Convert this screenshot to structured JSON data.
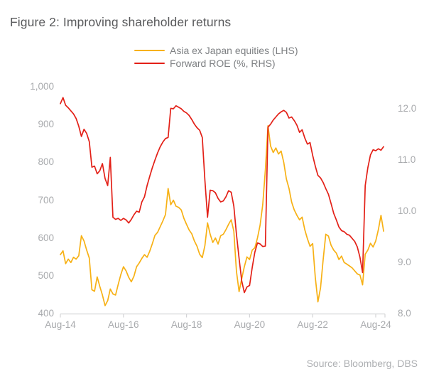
{
  "title": "Figure 2: Improving shareholder returns",
  "source": "Source: Bloomberg, DBS",
  "colors": {
    "title_text": "#58595B",
    "legend_text": "#7E8083",
    "axis_label_text": "#A8AAAD",
    "source_text": "#AEB0B3",
    "axis_line": "#D4D5D7",
    "series_yellow": "#F7B115",
    "series_red": "#E32017"
  },
  "chart_data": {
    "type": "line",
    "title": "Figure 2: Improving shareholder returns",
    "x_start": "Aug-2014",
    "x_end": "Nov-2024",
    "frequency": "monthly",
    "x_tick_labels": [
      "Aug-14",
      "Aug-16",
      "Aug-18",
      "Aug-20",
      "Aug-22",
      "Aug-24"
    ],
    "x_tick_month_index": [
      0,
      24,
      48,
      72,
      96,
      120
    ],
    "grid": "off",
    "legend_position": "top-center",
    "lhs_axis": {
      "side": "left",
      "tick_labels": [
        "1,000",
        "900",
        "800",
        "700",
        "600",
        "500",
        "400"
      ],
      "range": [
        400,
        1000
      ]
    },
    "rhs_axis": {
      "side": "right",
      "tick_labels": [
        "12.0",
        "11.0",
        "10.0",
        "9.0",
        "8.0"
      ],
      "tick_range": [
        8.0,
        12.0
      ]
    },
    "series": [
      {
        "name": "Asia ex Japan equities (LHS)",
        "axis": "lhs",
        "color": "#F7B115",
        "values": [
          556,
          566,
          532,
          544,
          535,
          549,
          544,
          553,
          606,
          592,
          568,
          547,
          463,
          459,
          497,
          472,
          449,
          421,
          434,
          465,
          452,
          449,
          477,
          503,
          524,
          513,
          496,
          484,
          499,
          524,
          534,
          546,
          556,
          549,
          565,
          585,
          607,
          615,
          630,
          645,
          662,
          731,
          688,
          700,
          684,
          681,
          674,
          652,
          636,
          621,
          611,
          592,
          578,
          557,
          548,
          580,
          640,
          610,
          588,
          600,
          584,
          606,
          610,
          622,
          636,
          648,
          618,
          512,
          458,
          492,
          524,
          550,
          543,
          568,
          574,
          600,
          634,
          688,
          780,
          897,
          843,
          826,
          838,
          822,
          830,
          800,
          756,
          731,
          695,
          674,
          660,
          648,
          655,
          622,
          598,
          578,
          585,
          496,
          431,
          468,
          543,
          610,
          605,
          581,
          568,
          560,
          543,
          552,
          535,
          531,
          526,
          521,
          513,
          505,
          502,
          476,
          557,
          568,
          586,
          576,
          592,
          622,
          660,
          618
        ]
      },
      {
        "name": "Forward ROE (%, RHS)",
        "axis": "rhs",
        "color": "#E32017",
        "values": [
          12.1,
          12.22,
          12.07,
          12.02,
          11.96,
          11.9,
          11.81,
          11.66,
          11.46,
          11.6,
          11.52,
          11.36,
          10.86,
          10.88,
          10.73,
          10.79,
          10.93,
          10.64,
          10.5,
          11.05,
          9.88,
          9.84,
          9.86,
          9.82,
          9.86,
          9.83,
          9.77,
          9.84,
          9.93,
          10.0,
          9.98,
          10.18,
          10.28,
          10.5,
          10.68,
          10.85,
          11.0,
          11.14,
          11.26,
          11.35,
          11.42,
          11.44,
          12.01,
          12.0,
          12.06,
          12.03,
          12.0,
          11.95,
          11.92,
          11.87,
          11.79,
          11.7,
          11.63,
          11.58,
          11.44,
          10.6,
          9.88,
          10.41,
          10.4,
          10.36,
          10.25,
          10.18,
          10.2,
          10.28,
          10.4,
          10.37,
          10.1,
          9.55,
          9.08,
          8.64,
          8.41,
          8.52,
          8.55,
          8.9,
          9.2,
          9.38,
          9.36,
          9.31,
          9.32,
          11.64,
          11.7,
          11.78,
          11.84,
          11.9,
          11.94,
          11.97,
          11.93,
          11.82,
          11.84,
          11.77,
          11.68,
          11.54,
          11.59,
          11.43,
          11.31,
          11.34,
          11.09,
          10.88,
          10.7,
          10.65,
          10.56,
          10.44,
          10.33,
          10.15,
          9.96,
          9.83,
          9.69,
          9.62,
          9.6,
          9.55,
          9.53,
          9.47,
          9.41,
          9.3,
          9.1,
          8.8,
          10.5,
          10.85,
          11.1,
          11.2,
          11.18,
          11.22,
          11.19,
          11.26
        ]
      }
    ]
  }
}
